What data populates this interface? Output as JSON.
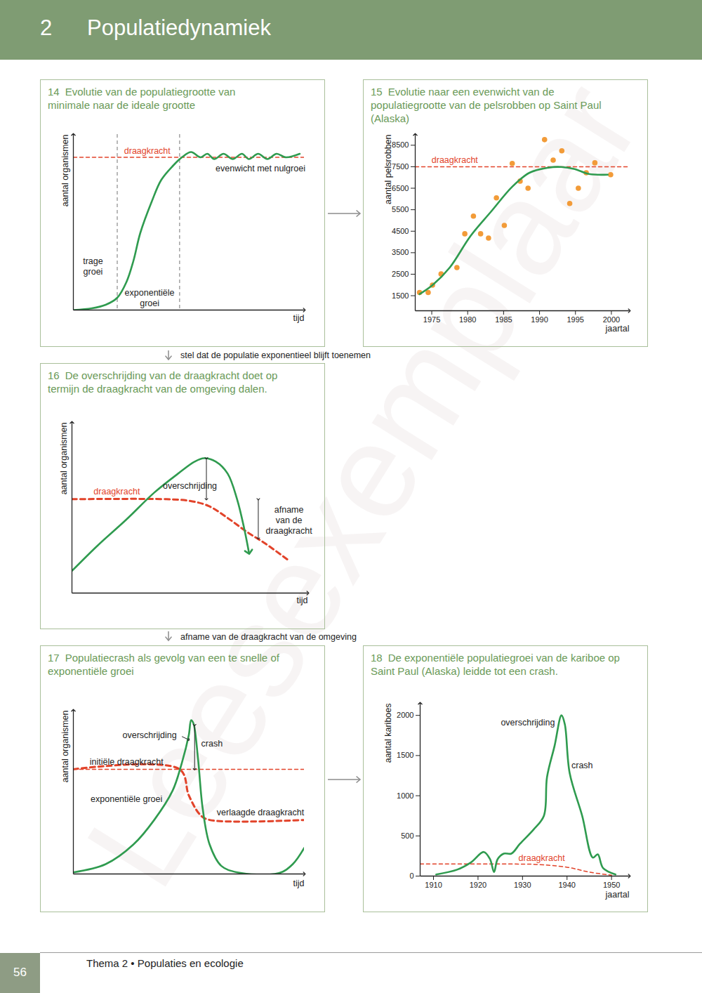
{
  "header": {
    "number": "2",
    "title": "Populatiedynamiek"
  },
  "footer": {
    "page": "56",
    "text": "Thema 2 • Populaties en ecologie"
  },
  "watermark": "Leesexemplaar",
  "connectors": [
    {
      "text": "stel dat de populatie exponentieel blijft toenemen"
    },
    {
      "text": "afname van de draagkracht van de omgeving"
    }
  ],
  "chart_data": [
    {
      "number": "14",
      "title": "Evolutie van de populatiegrootte van minimale naar de ideale grootte",
      "type": "line",
      "x_label": "tijd",
      "y_label": "aantal organismen",
      "xlim": [
        0,
        100
      ],
      "ylim": [
        0,
        100
      ],
      "tick_labels": false,
      "phase_boundaries": [
        19,
        46
      ],
      "series": [
        {
          "color": "#e2432a",
          "line_style": "dashed",
          "x": [
            0,
            100
          ],
          "values": [
            87,
            87
          ]
        },
        {
          "color": "#2f9b4f",
          "line_style": "solid",
          "x": [
            0,
            8,
            14,
            19,
            23,
            26,
            29,
            34,
            38,
            43,
            47,
            51,
            55,
            58,
            61,
            65,
            69,
            73,
            76,
            80,
            84,
            88,
            92,
            98
          ],
          "values": [
            0,
            1,
            3,
            7,
            16,
            28,
            44,
            62,
            74,
            82,
            87,
            90,
            87,
            89,
            86,
            89,
            86,
            89,
            86,
            89,
            86,
            89,
            87,
            89
          ]
        }
      ],
      "annotations": [
        {
          "text": "draagkracht",
          "x": 32,
          "y": 91,
          "color": "#e2432a"
        },
        {
          "text": "evenwicht met nulgroei",
          "x": 81,
          "y": 81
        },
        {
          "text": "trage\ngroei",
          "x": 8.5,
          "y": 25
        },
        {
          "text": "exponentiële\ngroei",
          "x": 33,
          "y": 7
        }
      ]
    },
    {
      "number": "15",
      "title": "Evolutie naar een evenwicht van de populatiegrootte van de pelsrobben op Saint Paul (Alaska)",
      "type": "line",
      "x_label": "jaartal",
      "y_label": "aantal pelsrobben",
      "xlim": [
        1972.7,
        2002.5
      ],
      "ylim": [
        800,
        9000
      ],
      "xticks": [
        1975,
        1980,
        1985,
        1990,
        1995,
        2000
      ],
      "yticks": [
        1500,
        2500,
        3500,
        4500,
        5500,
        6500,
        7500,
        8500
      ],
      "tick_labels": true,
      "series": [
        {
          "type": "line",
          "color": "#e2432a",
          "line_style": "dashed",
          "x": [
            1972.7,
            2002.5
          ],
          "values": [
            7500,
            7500
          ]
        },
        {
          "type": "scatter",
          "color": "#f29b38",
          "marker": "circle",
          "x": [
            1973.3,
            1974.5,
            1975.1,
            1976.3,
            1978.5,
            1979.6,
            1980.8,
            1981.8,
            1982.9,
            1984.0,
            1985.1,
            1986.2,
            1987.3,
            1988.4,
            1990.7,
            1991.9,
            1993.1,
            1994.2,
            1995.4,
            1996.5,
            1997.7,
            1999.9
          ],
          "values": [
            1650,
            1650,
            1990,
            2510,
            2810,
            4380,
            5200,
            4380,
            4180,
            6050,
            4770,
            7650,
            6830,
            6500,
            8760,
            7810,
            8240,
            5790,
            6500,
            7220,
            7680,
            7130
          ]
        },
        {
          "type": "line",
          "color": "#2f9b4f",
          "line_style": "solid",
          "x": [
            1973.3,
            1975.1,
            1977.5,
            1980.4,
            1983.3,
            1986.2,
            1988.6,
            1991.1,
            1993.0,
            1994.9,
            1996.9,
            1999.5
          ],
          "values": [
            1570,
            1990,
            2810,
            4280,
            5430,
            6570,
            7220,
            7450,
            7490,
            7390,
            7160,
            7130
          ]
        }
      ],
      "annotations": [
        {
          "text": "draagkracht",
          "x": 1978.2,
          "y": 7830,
          "color": "#e2432a"
        }
      ]
    },
    {
      "number": "16",
      "title": "De overschrijding van de draagkracht doet op termijn de draagkracht van de omgeving dalen.",
      "type": "line",
      "x_label": "tijd",
      "y_label": "aantal organismen",
      "xlim": [
        0,
        100
      ],
      "ylim": [
        0,
        100
      ],
      "tick_labels": false,
      "series": [
        {
          "color": "#e2432a",
          "line_style": "thick_dashed",
          "x": [
            0,
            40,
            50,
            58,
            66,
            74,
            82,
            92
          ],
          "values": [
            55,
            55,
            54,
            51,
            44,
            36,
            29,
            19
          ]
        },
        {
          "color": "#2f9b4f",
          "line_style": "solid",
          "marker": "arrow",
          "x": [
            0,
            11,
            23,
            35,
            45,
            52,
            56,
            61,
            66,
            70,
            73,
            75
          ],
          "values": [
            13,
            28,
            43,
            59,
            70,
            77,
            79,
            77,
            70,
            55,
            38,
            24
          ]
        }
      ],
      "annotations": [
        {
          "text": "draagkracht",
          "x": 19,
          "y": 60,
          "color": "#e2432a"
        },
        {
          "text": "overschrijding",
          "x": 50,
          "y": 63
        },
        {
          "text": "afname\nvan de\ndraagkracht",
          "x": 92,
          "y": 43
        }
      ],
      "arrows": [
        {
          "x1": 57,
          "y1": 79,
          "x2": 57,
          "y2": 55,
          "marker": "double"
        },
        {
          "x1": 79,
          "y1": 55,
          "x2": 79,
          "y2": 32,
          "marker": "double"
        }
      ]
    },
    {
      "number": "17",
      "title": "Populatiecrash als gevolg van een te snelle of exponentiële groei",
      "type": "line",
      "x_label": "tijd",
      "y_label": "aantal organismen",
      "xlim": [
        0,
        100
      ],
      "ylim": [
        0,
        100
      ],
      "tick_labels": false,
      "series": [
        {
          "color": "#e2432a",
          "line_style": "dashed",
          "x": [
            0,
            100
          ],
          "values": [
            64,
            64
          ]
        },
        {
          "color": "#e2432a",
          "line_style": "thick_dashed",
          "x": [
            0,
            46,
            50,
            55,
            59,
            100
          ],
          "values": [
            64,
            64,
            48,
            36,
            33,
            33
          ]
        },
        {
          "color": "#2f9b4f",
          "line_style": "solid",
          "x": [
            0,
            14,
            26,
            35,
            43,
            47,
            50,
            51,
            52,
            54,
            56,
            59,
            64,
            71,
            89,
            95,
            100
          ],
          "values": [
            1,
            6,
            18,
            33,
            51,
            68,
            85,
            94,
            92,
            70,
            40,
            18,
            5,
            1,
            0.5,
            6,
            16
          ]
        }
      ],
      "annotations": [
        {
          "text": "overschrijding",
          "x": 33,
          "y": 85
        },
        {
          "text": "crash",
          "x": 60,
          "y": 80
        },
        {
          "text": "initiële draagkracht",
          "x": 23,
          "y": 69
        },
        {
          "text": "exponentiële groei",
          "x": 23,
          "y": 46
        },
        {
          "text": "verlaagde draagkracht",
          "x": 81,
          "y": 38
        }
      ],
      "arrows": [
        {
          "x1": 47,
          "y1": 84,
          "x2": 50,
          "y2": 82,
          "marker": "arrow"
        },
        {
          "x1": 52.5,
          "y1": 91,
          "x2": 52.5,
          "y2": 64,
          "marker": "double"
        }
      ]
    },
    {
      "number": "18",
      "title": "De exponentiële populatiegroei van de kariboe op Saint Paul (Alaska) leidde tot een crash.",
      "type": "line",
      "x_label": "jaartal",
      "y_label": "aantal kariboes",
      "xlim": [
        1907,
        1954
      ],
      "ylim": [
        0,
        2150
      ],
      "xticks": [
        1910,
        1920,
        1930,
        1940,
        1950
      ],
      "yticks": [
        0,
        500,
        1000,
        1500,
        2000
      ],
      "tick_labels": true,
      "series": [
        {
          "color": "#e2432a",
          "line_style": "dashed",
          "x": [
            1907,
            1928,
            1933,
            1940,
            1945,
            1950
          ],
          "values": [
            150,
            150,
            145,
            110,
            50,
            10
          ]
        },
        {
          "color": "#2f9b4f",
          "line_style": "solid",
          "x": [
            1910.6,
            1915.3,
            1918.4,
            1921.3,
            1922.7,
            1923.6,
            1924.4,
            1925.8,
            1927.5,
            1929.4,
            1932.5,
            1934.8,
            1935.5,
            1937.2,
            1938.75,
            1939.5,
            1940.6,
            1943.4,
            1945.8,
            1946.9,
            1948.1,
            1950.9
          ],
          "values": [
            20,
            80,
            170,
            300,
            210,
            50,
            210,
            280,
            280,
            400,
            580,
            750,
            1230,
            1620,
            2000,
            1890,
            1280,
            750,
            230,
            270,
            100,
            20
          ]
        }
      ],
      "annotations": [
        {
          "text": "overschrijding",
          "x": 1931.2,
          "y": 1920
        },
        {
          "text": "crash",
          "x": 1943.4,
          "y": 1380
        },
        {
          "text": "draagkracht",
          "x": 1934.3,
          "y": 230,
          "color": "#e2432a"
        }
      ]
    }
  ]
}
